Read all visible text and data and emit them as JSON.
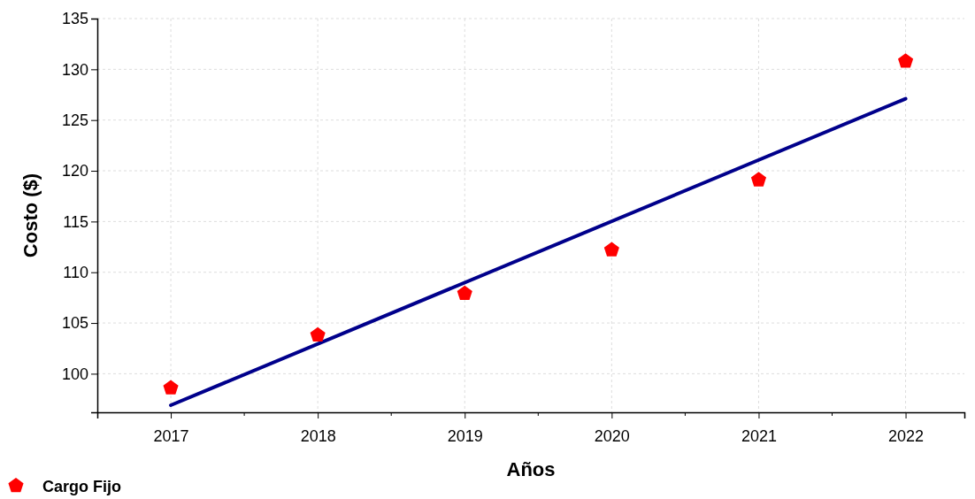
{
  "chart_data": {
    "type": "scatter",
    "xlabel": "Años",
    "ylabel": "Costo ($)",
    "x": [
      2017,
      2018,
      2019,
      2020,
      2021,
      2022
    ],
    "series": [
      {
        "name": "Cargo Fijo",
        "color": "#ff0000",
        "values": [
          98.6,
          103.8,
          107.9,
          112.2,
          119.1,
          130.8
        ]
      },
      {
        "type": "line",
        "color": "#00008b",
        "x": [
          2017,
          2022
        ],
        "values": [
          96.9,
          127.1
        ]
      }
    ],
    "xlim": [
      2016.5,
      2022.4
    ],
    "xticks": [
      2017,
      2018,
      2019,
      2020,
      2021,
      2022
    ],
    "ylim": [
      96.2,
      135
    ],
    "yticks": [
      100,
      105,
      110,
      115,
      120,
      125,
      130,
      135
    ],
    "grid": true,
    "legend": "bottom left"
  }
}
